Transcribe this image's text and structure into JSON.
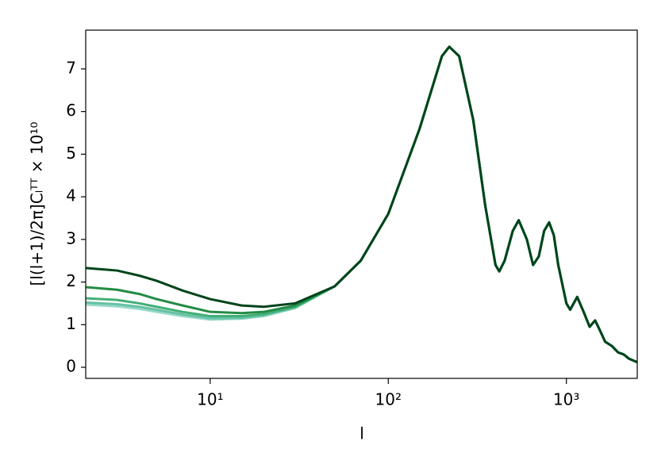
{
  "chart_data": {
    "type": "line",
    "xlabel": "l",
    "ylabel": "[l(l+1)/2π]Cₗᵀᵀ × 10¹⁰",
    "xscale": "log",
    "xlim": [
      2,
      2500
    ],
    "ylim": [
      -0.26,
      7.91
    ],
    "xticks": [
      {
        "value": 10,
        "label": "10¹"
      },
      {
        "value": 100,
        "label": "10²"
      },
      {
        "value": 1000,
        "label": "10³"
      }
    ],
    "yticks": [
      0,
      1,
      2,
      3,
      4,
      5,
      6,
      7
    ],
    "grid": false,
    "x": [
      2,
      3,
      4,
      5,
      7,
      10,
      15,
      20,
      30,
      50,
      70,
      100,
      150,
      200,
      220,
      250,
      300,
      350,
      400,
      420,
      450,
      500,
      540,
      600,
      650,
      700,
      750,
      800,
      850,
      900,
      1000,
      1050,
      1150,
      1250,
      1350,
      1450,
      1550,
      1650,
      1800,
      1950,
      2100,
      2250,
      2500
    ],
    "series": [
      {
        "color": "#99d8c9",
        "values": [
          1.47,
          1.43,
          1.37,
          1.3,
          1.2,
          1.12,
          1.14,
          1.2,
          1.39,
          1.9,
          2.5,
          3.6,
          5.6,
          7.3,
          7.52,
          7.3,
          5.8,
          3.8,
          2.4,
          2.25,
          2.5,
          3.2,
          3.45,
          3.0,
          2.4,
          2.6,
          3.2,
          3.4,
          3.1,
          2.4,
          1.5,
          1.35,
          1.65,
          1.3,
          0.95,
          1.1,
          0.85,
          0.6,
          0.5,
          0.35,
          0.3,
          0.2,
          0.12
        ]
      },
      {
        "color": "#66c2a4",
        "values": [
          1.52,
          1.48,
          1.42,
          1.35,
          1.24,
          1.15,
          1.16,
          1.22,
          1.4,
          1.9,
          2.5,
          3.6,
          5.6,
          7.3,
          7.52,
          7.3,
          5.8,
          3.8,
          2.4,
          2.25,
          2.5,
          3.2,
          3.45,
          3.0,
          2.4,
          2.6,
          3.2,
          3.4,
          3.1,
          2.4,
          1.5,
          1.35,
          1.65,
          1.3,
          0.95,
          1.1,
          0.85,
          0.6,
          0.5,
          0.35,
          0.3,
          0.2,
          0.12
        ]
      },
      {
        "color": "#41ae76",
        "values": [
          1.62,
          1.58,
          1.5,
          1.42,
          1.3,
          1.2,
          1.2,
          1.25,
          1.42,
          1.9,
          2.5,
          3.6,
          5.6,
          7.3,
          7.52,
          7.3,
          5.8,
          3.8,
          2.4,
          2.25,
          2.5,
          3.2,
          3.45,
          3.0,
          2.4,
          2.6,
          3.2,
          3.4,
          3.1,
          2.4,
          1.5,
          1.35,
          1.65,
          1.3,
          0.95,
          1.1,
          0.85,
          0.6,
          0.5,
          0.35,
          0.3,
          0.2,
          0.12
        ]
      },
      {
        "color": "#238b45",
        "values": [
          1.88,
          1.82,
          1.72,
          1.6,
          1.45,
          1.3,
          1.27,
          1.3,
          1.45,
          1.9,
          2.5,
          3.6,
          5.6,
          7.3,
          7.52,
          7.3,
          5.8,
          3.8,
          2.4,
          2.25,
          2.5,
          3.2,
          3.45,
          3.0,
          2.4,
          2.6,
          3.2,
          3.4,
          3.1,
          2.4,
          1.5,
          1.35,
          1.65,
          1.3,
          0.95,
          1.1,
          0.85,
          0.6,
          0.5,
          0.35,
          0.3,
          0.2,
          0.12
        ]
      },
      {
        "color": "#00441b",
        "values": [
          2.33,
          2.27,
          2.15,
          2.03,
          1.8,
          1.6,
          1.45,
          1.42,
          1.5,
          1.9,
          2.5,
          3.6,
          5.6,
          7.3,
          7.52,
          7.3,
          5.8,
          3.8,
          2.4,
          2.25,
          2.5,
          3.2,
          3.45,
          3.0,
          2.4,
          2.6,
          3.2,
          3.4,
          3.1,
          2.4,
          1.5,
          1.35,
          1.65,
          1.3,
          0.95,
          1.1,
          0.85,
          0.6,
          0.5,
          0.35,
          0.3,
          0.2,
          0.12
        ]
      }
    ]
  }
}
